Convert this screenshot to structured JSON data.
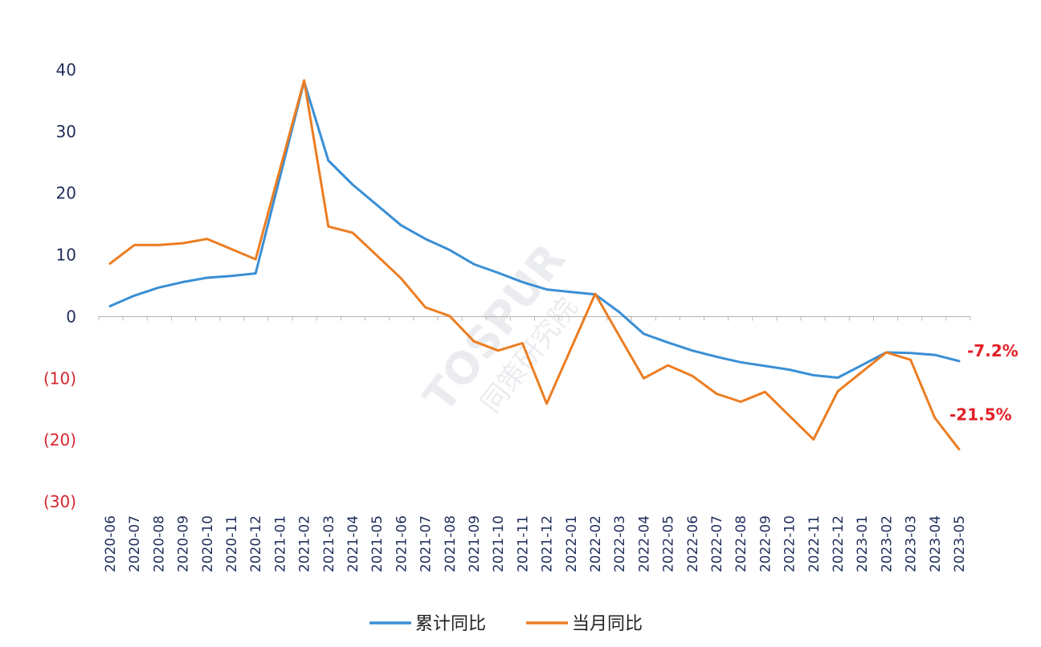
{
  "chart_data": {
    "type": "line",
    "x": [
      "2020-06",
      "2020-07",
      "2020-08",
      "2020-09",
      "2020-10",
      "2020-11",
      "2020-12",
      "2021-01",
      "2021-02",
      "2021-03",
      "2021-04",
      "2021-05",
      "2021-06",
      "2021-07",
      "2021-08",
      "2021-09",
      "2021-10",
      "2021-11",
      "2021-12",
      "2022-01",
      "2022-02",
      "2022-03",
      "2022-04",
      "2022-05",
      "2022-06",
      "2022-07",
      "2022-08",
      "2022-09",
      "2022-10",
      "2022-11",
      "2022-12",
      "2023-01",
      "2023-02",
      "2023-03",
      "2023-04",
      "2023-05"
    ],
    "series": [
      {
        "name": "累计同比",
        "color": "#3a8fd4",
        "values": [
          1.7,
          3.4,
          4.7,
          5.6,
          6.3,
          6.6,
          7.0,
          null,
          38.1,
          25.3,
          21.4,
          18.1,
          14.8,
          12.6,
          10.8,
          8.5,
          7.1,
          5.6,
          4.4,
          null,
          3.6,
          0.7,
          -2.8,
          -4.2,
          -5.5,
          -6.5,
          -7.4,
          -8.0,
          -8.6,
          -9.5,
          -9.9,
          null,
          -5.8,
          -5.9,
          -6.2,
          -7.2
        ]
      },
      {
        "name": "当月同比",
        "color": "#ec7d22",
        "values": [
          8.6,
          11.6,
          11.6,
          11.9,
          12.6,
          null,
          9.3,
          null,
          38.3,
          14.6,
          13.6,
          null,
          6.2,
          1.5,
          0.1,
          -4.0,
          -5.5,
          -4.3,
          -14.1,
          null,
          3.7,
          -3.2,
          -10.0,
          -7.9,
          -9.6,
          -12.5,
          -13.8,
          -12.2,
          null,
          -19.9,
          -12.1,
          null,
          -5.8,
          -7.0,
          -16.4,
          -21.5
        ]
      }
    ],
    "ylim": [
      -30,
      40
    ],
    "yticks": [
      40,
      30,
      20,
      10,
      0,
      -10,
      -20,
      -30
    ],
    "ytick_labels": [
      "40",
      "30",
      "20",
      "10",
      "0",
      "(10)",
      "(20)",
      "(30)"
    ],
    "annotations": [
      {
        "series": "累计同比",
        "x": "2023-05",
        "text": "-7.2%"
      },
      {
        "series": "当月同比",
        "x": "2023-05",
        "text": "-21.5%"
      }
    ],
    "legend": {
      "placement": "bottom"
    }
  },
  "watermark": {
    "brand": "TOSPUR",
    "sub": "同策研究院"
  }
}
